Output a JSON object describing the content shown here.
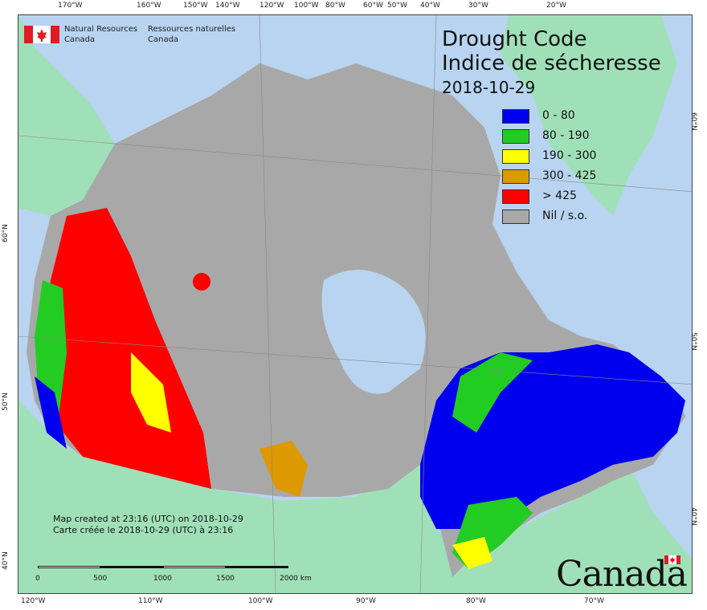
{
  "header": {
    "agency_en": "Natural Resources",
    "agency_en2": "Canada",
    "agency_fr": "Ressources naturelles",
    "agency_fr2": "Canada"
  },
  "title": {
    "en": "Drought Code",
    "fr": "Indice de sécheresse",
    "date": "2018-10-29"
  },
  "legend": [
    {
      "label": "0 - 80",
      "color": "#0000ee"
    },
    {
      "label": "80 - 190",
      "color": "#22cc22"
    },
    {
      "label": "190 - 300",
      "color": "#ffff00"
    },
    {
      "label": "300 - 425",
      "color": "#dd9900"
    },
    {
      "label": "> 425",
      "color": "#ff0000"
    },
    {
      "label": "Nil / s.o.",
      "color": "#a8a8a8"
    }
  ],
  "credit": {
    "en": "Map created at 23:16 (UTC) on 2018-10-29",
    "fr": "Carte créée le 2018-10-29 (UTC) à 23:16"
  },
  "scale": {
    "labels": [
      "0",
      "500",
      "1000",
      "1500",
      "2000  km"
    ]
  },
  "wordmark": "Canada",
  "ticks": {
    "top": [
      "170°W",
      "160°W",
      "150°W",
      "140°W",
      "120°W",
      "100°W",
      "80°W",
      "60°W",
      "50°W",
      "40°W",
      "30°W",
      "20°W"
    ],
    "bottom": [
      "120°W",
      "110°W",
      "100°W",
      "90°W",
      "80°W",
      "70°W"
    ],
    "left": [
      "60°N",
      "50°N",
      "40°N"
    ],
    "right": [
      "60°N",
      "50°N",
      "40°N"
    ]
  },
  "colors": {
    "ocean": "#b8d4f0",
    "land_other": "#a0e0b8",
    "canada_nodata": "#a8a8a8"
  }
}
